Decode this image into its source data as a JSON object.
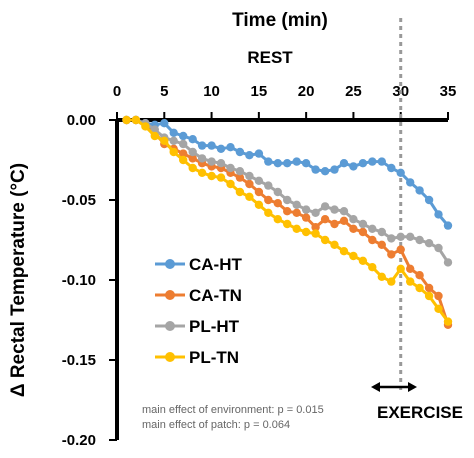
{
  "chart_data": {
    "type": "line",
    "xlabel": "Time (min)",
    "ylabel": "Δ Rectal Temperature (°C)",
    "xlim": [
      0,
      35
    ],
    "ylim": [
      -0.2,
      0.0
    ],
    "x_axis_position": "top",
    "x_ticks": [
      0,
      5,
      10,
      15,
      20,
      25,
      30,
      35
    ],
    "y_ticks": [
      0.0,
      -0.05,
      -0.1,
      -0.15,
      -0.2
    ],
    "x_tick_labels": [
      "0",
      "5",
      "10",
      "15",
      "20",
      "25",
      "30",
      "35"
    ],
    "y_tick_labels": [
      "0.00",
      "-0.05",
      "-0.10",
      "-0.15",
      "-0.20"
    ],
    "phase_labels": {
      "rest": "REST",
      "exercise": "EXERCISE"
    },
    "exercise_start": 30,
    "annotations": [
      "main effect of environment: p = 0.015",
      "main effect of patch: p = 0.064"
    ],
    "legend": {
      "position": "left-middle"
    },
    "grid": false,
    "series": [
      {
        "name": "CA-HT",
        "color": "#5B9BD5",
        "x": [
          1,
          2,
          3,
          4,
          5,
          6,
          7,
          8,
          9,
          10,
          11,
          12,
          13,
          14,
          15,
          16,
          17,
          18,
          19,
          20,
          21,
          22,
          23,
          24,
          25,
          26,
          27,
          28,
          29,
          30,
          31,
          32,
          33,
          34,
          35
        ],
        "y": [
          0.0,
          0.0,
          -0.002,
          -0.003,
          -0.002,
          -0.008,
          -0.01,
          -0.012,
          -0.016,
          -0.016,
          -0.018,
          -0.017,
          -0.02,
          -0.022,
          -0.021,
          -0.026,
          -0.027,
          -0.027,
          -0.026,
          -0.027,
          -0.031,
          -0.032,
          -0.031,
          -0.027,
          -0.029,
          -0.027,
          -0.026,
          -0.026,
          -0.03,
          -0.033,
          -0.039,
          -0.044,
          -0.05,
          -0.059,
          -0.066
        ]
      },
      {
        "name": "CA-TN",
        "color": "#ED7D31",
        "x": [
          1,
          2,
          3,
          4,
          5,
          6,
          7,
          8,
          9,
          10,
          11,
          12,
          13,
          14,
          15,
          16,
          17,
          18,
          19,
          20,
          21,
          22,
          23,
          24,
          25,
          26,
          27,
          28,
          29,
          30,
          31,
          32,
          33,
          34,
          35
        ],
        "y": [
          0.0,
          0.0,
          -0.003,
          -0.008,
          -0.015,
          -0.018,
          -0.021,
          -0.024,
          -0.027,
          -0.029,
          -0.03,
          -0.033,
          -0.036,
          -0.04,
          -0.045,
          -0.05,
          -0.052,
          -0.057,
          -0.058,
          -0.061,
          -0.067,
          -0.062,
          -0.065,
          -0.063,
          -0.068,
          -0.07,
          -0.075,
          -0.078,
          -0.084,
          -0.081,
          -0.093,
          -0.097,
          -0.105,
          -0.11,
          -0.128
        ]
      },
      {
        "name": "PL-HT",
        "color": "#A5A5A5",
        "x": [
          1,
          2,
          3,
          4,
          5,
          6,
          7,
          8,
          9,
          10,
          11,
          12,
          13,
          14,
          15,
          16,
          17,
          18,
          19,
          20,
          21,
          22,
          23,
          24,
          25,
          26,
          27,
          28,
          29,
          30,
          31,
          32,
          33,
          34,
          35
        ],
        "y": [
          0.0,
          0.0,
          -0.002,
          -0.006,
          -0.011,
          -0.013,
          -0.015,
          -0.02,
          -0.024,
          -0.026,
          -0.027,
          -0.03,
          -0.032,
          -0.035,
          -0.038,
          -0.041,
          -0.045,
          -0.05,
          -0.053,
          -0.056,
          -0.058,
          -0.054,
          -0.056,
          -0.057,
          -0.062,
          -0.065,
          -0.068,
          -0.07,
          -0.074,
          -0.073,
          -0.073,
          -0.075,
          -0.077,
          -0.08,
          -0.089
        ]
      },
      {
        "name": "PL-TN",
        "color": "#FFC000",
        "x": [
          1,
          2,
          3,
          4,
          5,
          6,
          7,
          8,
          9,
          10,
          11,
          12,
          13,
          14,
          15,
          16,
          17,
          18,
          19,
          20,
          21,
          22,
          23,
          24,
          25,
          26,
          27,
          28,
          29,
          30,
          31,
          32,
          33,
          34,
          35
        ],
        "y": [
          0.0,
          0.0,
          -0.004,
          -0.01,
          -0.013,
          -0.02,
          -0.025,
          -0.03,
          -0.033,
          -0.035,
          -0.036,
          -0.04,
          -0.045,
          -0.048,
          -0.053,
          -0.058,
          -0.062,
          -0.065,
          -0.068,
          -0.07,
          -0.071,
          -0.075,
          -0.078,
          -0.082,
          -0.085,
          -0.088,
          -0.092,
          -0.098,
          -0.101,
          -0.093,
          -0.101,
          -0.105,
          -0.11,
          -0.118,
          -0.126
        ]
      }
    ]
  }
}
